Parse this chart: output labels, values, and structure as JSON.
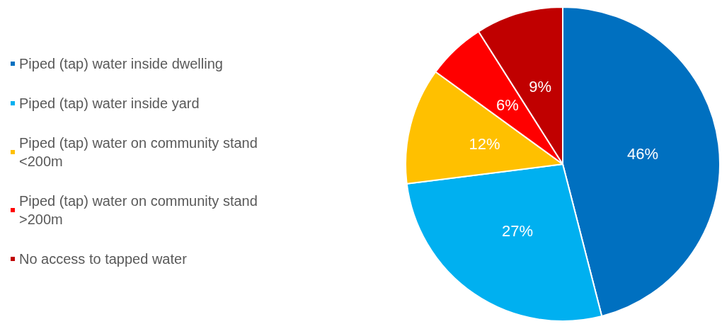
{
  "chart_data": {
    "type": "pie",
    "categories": [
      "Piped (tap) water inside dwelling",
      "Piped (tap) water inside yard",
      "Piped (tap) water on community stand <200m",
      "Piped (tap) water on community stand >200m",
      "No access to tapped water"
    ],
    "values": [
      46,
      27,
      12,
      6,
      9
    ],
    "value_labels": [
      "46%",
      "27%",
      "12%",
      "6%",
      "9%"
    ],
    "colors": [
      "#0070c0",
      "#00b0f0",
      "#ffc000",
      "#ff0000",
      "#c00000"
    ],
    "legend": "left"
  }
}
